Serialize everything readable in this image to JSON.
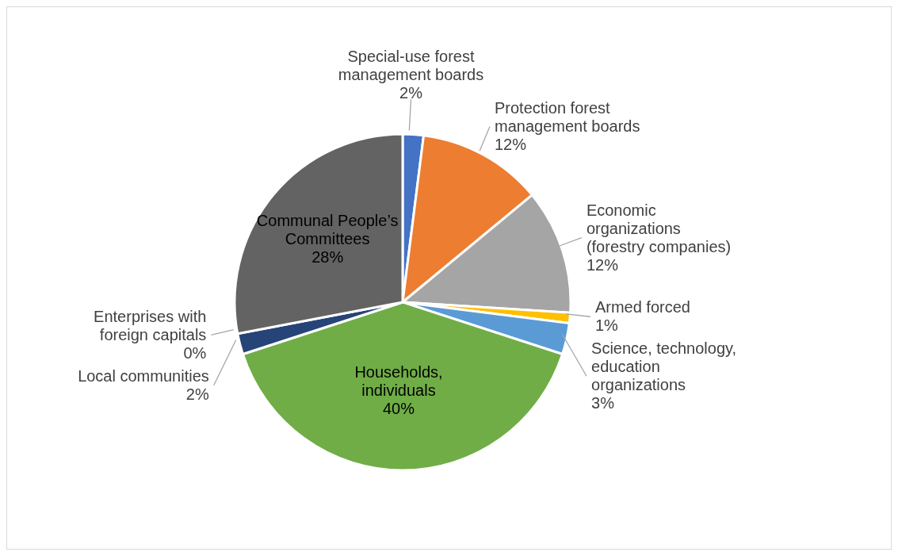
{
  "chart_data": {
    "type": "pie",
    "categories": [
      "Special-use forest management boards",
      "Protection forest management boards",
      "Economic organizations (forestry companies)",
      "Armed forced",
      "Science, technology, education organizations",
      "Households, individuals",
      "Local communities",
      "Enterprises with foreign capitals",
      "Communal People’s Committees"
    ],
    "values": [
      2,
      12,
      12,
      1,
      3,
      40,
      2,
      0,
      28
    ],
    "colors": [
      "#4472c4",
      "#ed7d31",
      "#a5a5a5",
      "#ffc000",
      "#5b9bd5",
      "#70ad47",
      "#264478",
      "#9e480e",
      "#636363"
    ],
    "value_labels": [
      "2%",
      "12%",
      "12%",
      "1%",
      "3%",
      "40%",
      "2%",
      "0%",
      "28%"
    ]
  }
}
